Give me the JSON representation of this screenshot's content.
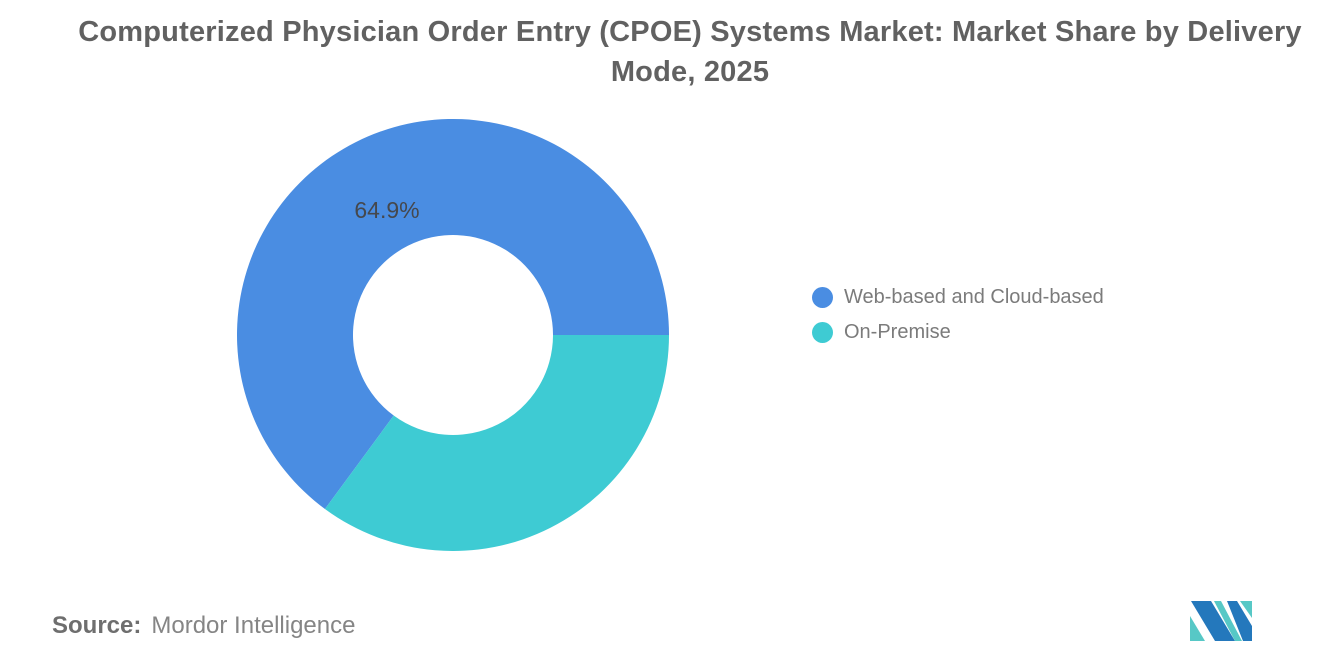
{
  "chart_data": {
    "type": "pie",
    "subtype": "donut",
    "title": "Computerized Physician Order Entry (CPOE) Systems Market: Market Share by Delivery Mode, 2025",
    "units": "percent market share",
    "start_angle_deg": -143.64,
    "inner_radius_ratio": 0.463,
    "legend_position": "right",
    "data_label_color": "#45484D",
    "series": [
      {
        "name": "Web-based and Cloud-based",
        "value": 64.9,
        "color": "#4A8DE2",
        "data_label": "64.9%"
      },
      {
        "name": "On-Premise",
        "value": 35.1,
        "color": "#3ECBD3",
        "data_label": ""
      }
    ]
  },
  "footer": {
    "source_label": "Source:",
    "source_text": "Mordor Intelligence"
  },
  "branding": {
    "logo": "mordor-intelligence-logo",
    "logo_blue": "#2478BC",
    "logo_teal": "#57C8C6"
  }
}
